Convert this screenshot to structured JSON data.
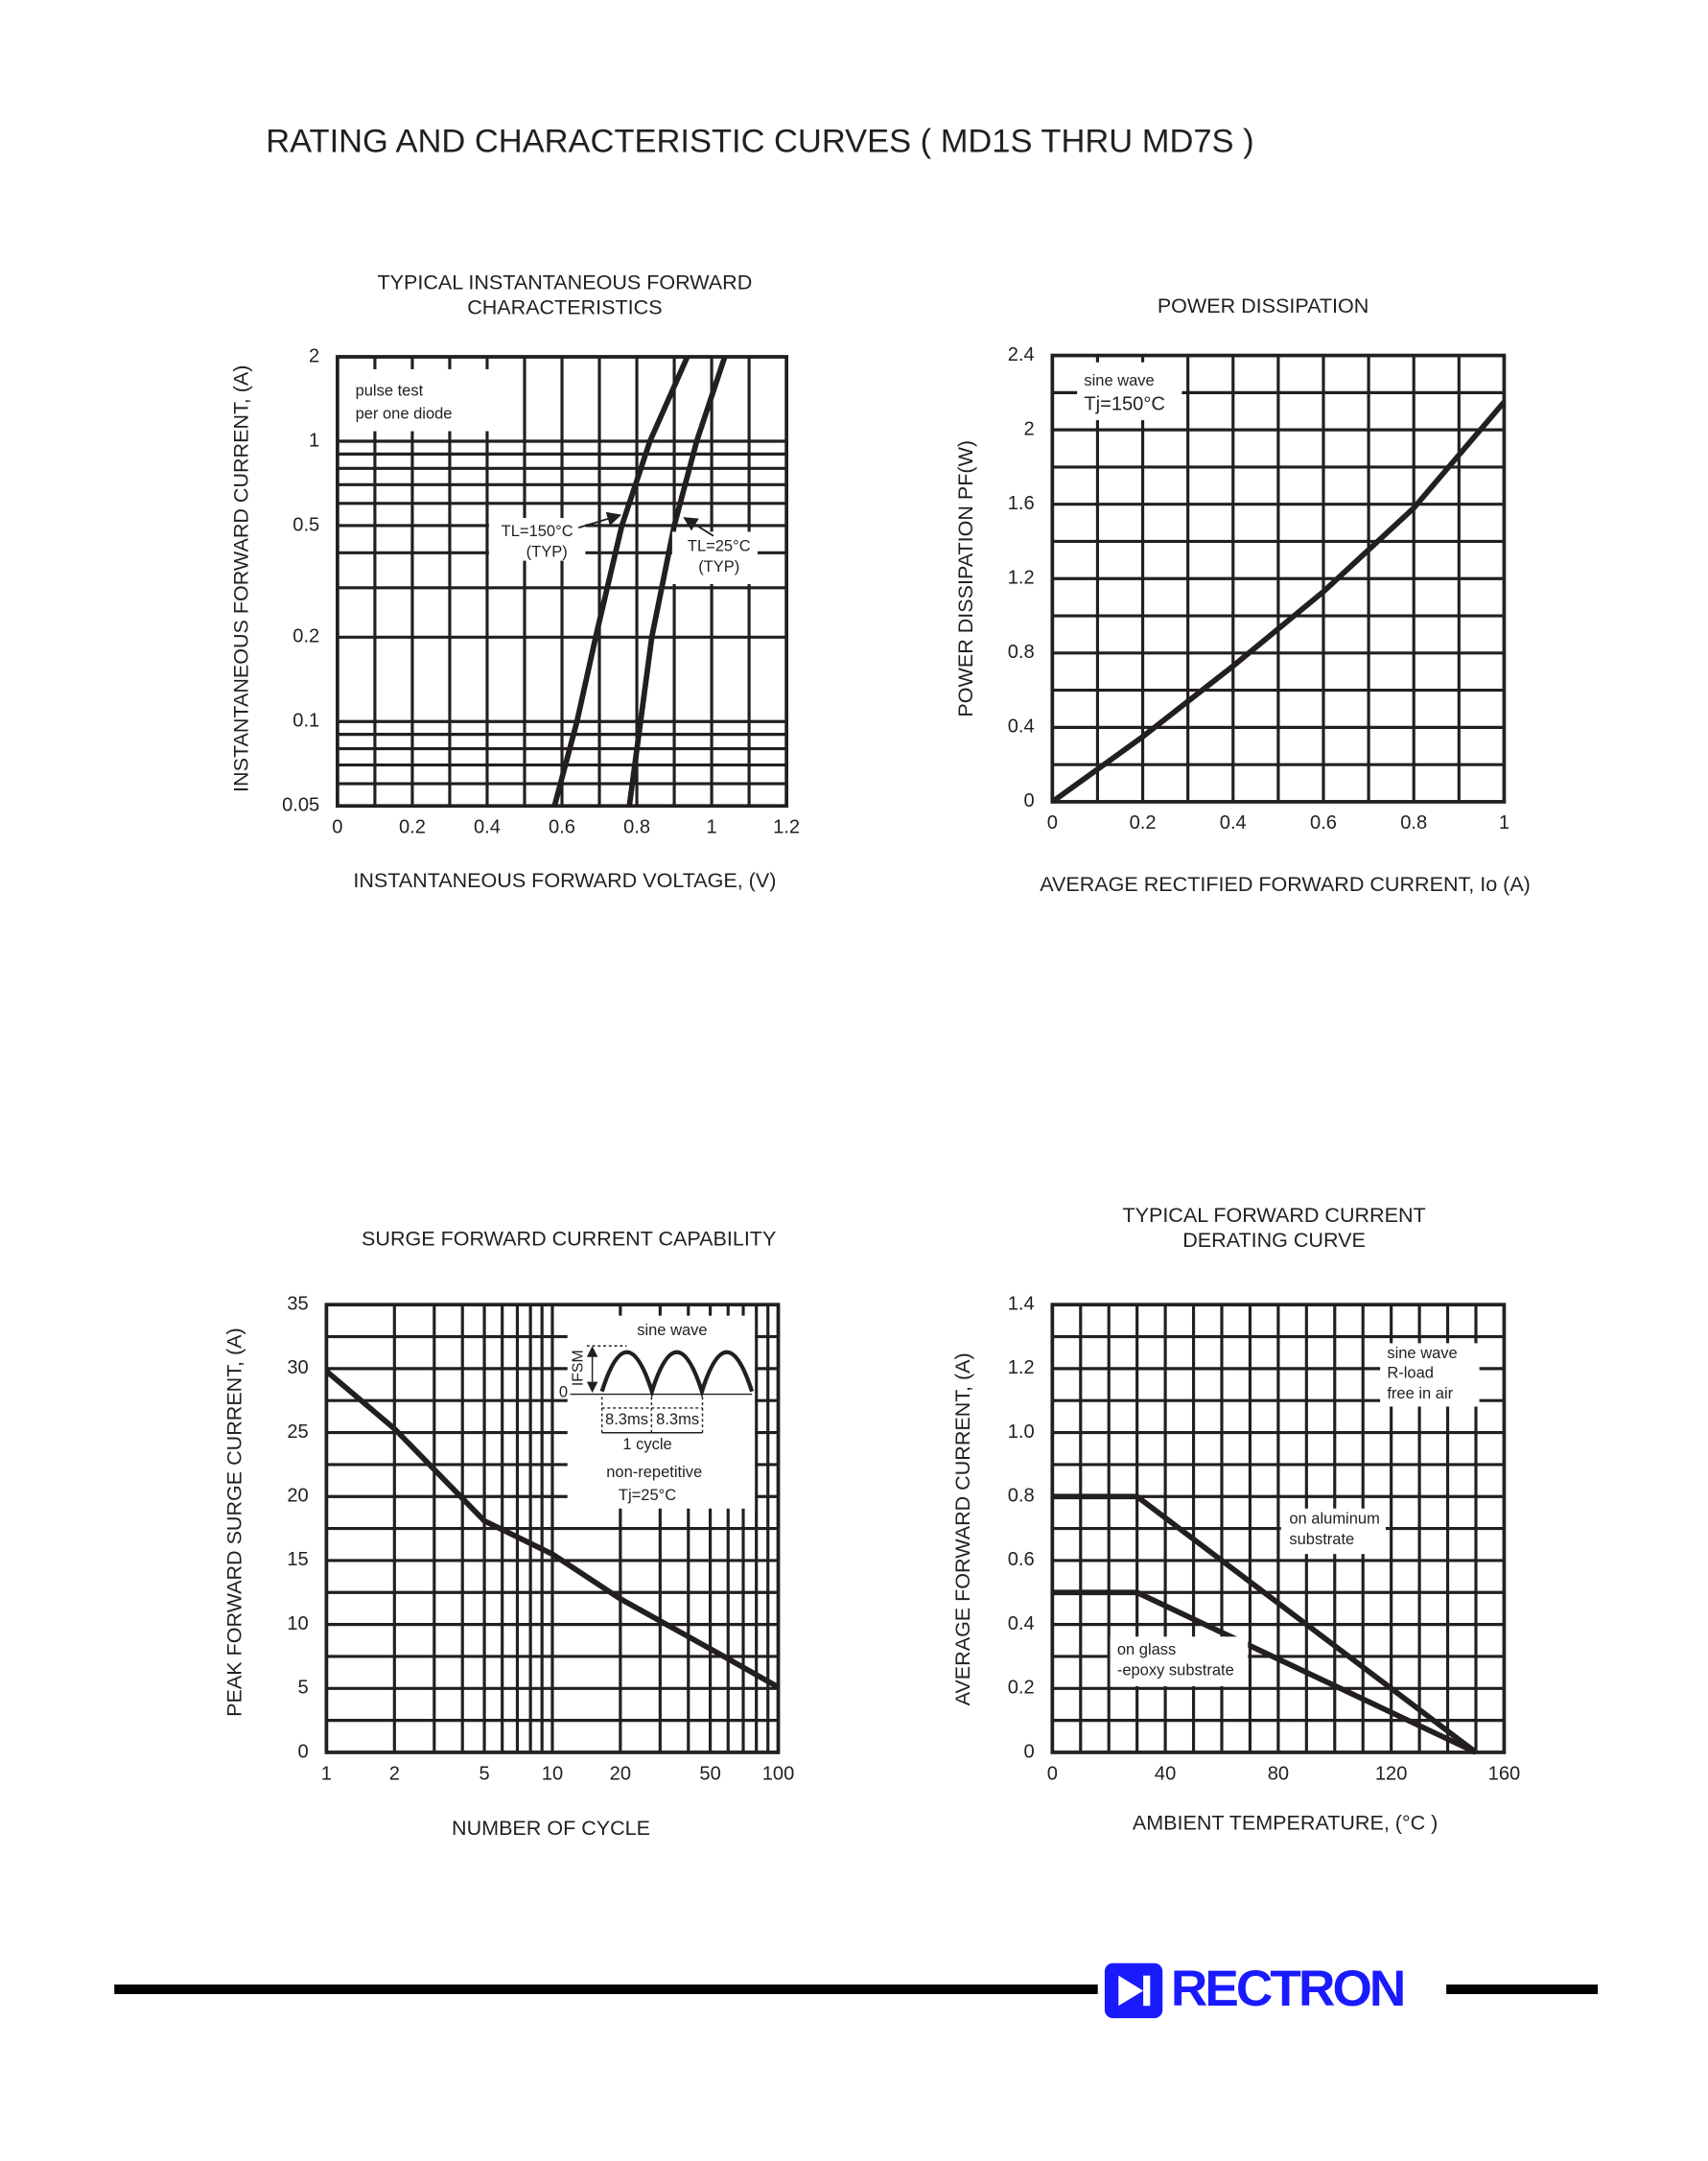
{
  "title": "RATING  AND CHARACTERISTIC CURVES ( MD1S THRU MD7S )",
  "chart_data": [
    {
      "type": "line",
      "title": [
        "TYPICAL INSTANTANEOUS FORWARD",
        "CHARACTERISTICS"
      ],
      "x_label": "INSTANTANEOUS FORWARD VOLTAGE, (V)",
      "y_label": "INSTANTANEOUS FORWARD CURRENT, (A)",
      "xlim": [
        0,
        1.2
      ],
      "ylim": [
        0.05,
        2
      ],
      "yscale": "log",
      "xticks": [
        0,
        0.2,
        0.4,
        0.6,
        0.8,
        1,
        1.2
      ],
      "yticks": [
        0.05,
        0.1,
        0.2,
        0.5,
        1,
        2
      ],
      "minor_xticks": [
        0.1,
        0.3,
        0.5,
        0.7,
        0.9,
        1.1
      ],
      "minor_yticks": [
        0.06,
        0.07,
        0.08,
        0.09,
        0.3,
        0.4,
        0.6,
        0.7,
        0.8,
        0.9
      ],
      "grid": true,
      "series": [
        {
          "name": "TL=150°C",
          "color": "#231f20",
          "x": [
            0.58,
            0.64,
            0.69,
            0.76,
            0.835,
            0.935
          ],
          "y": [
            0.05,
            0.1,
            0.2,
            0.5,
            1,
            2
          ]
        },
        {
          "name": "TL=25°C",
          "color": "#231f20",
          "x": [
            0.78,
            0.81,
            0.84,
            0.9,
            0.96,
            1.035
          ],
          "y": [
            0.05,
            0.1,
            0.2,
            0.5,
            1,
            2
          ]
        }
      ],
      "annotations": [
        "pulse test",
        "per one diode",
        "TL=150°C",
        "(TYP)",
        "TL=25°C",
        "(TYP)"
      ]
    },
    {
      "type": "line",
      "title": [
        "POWER DISSIPATION"
      ],
      "x_label": "AVERAGE RECTIFIED FORWARD CURRENT, Io (A)",
      "y_label": "POWER DISSIPATION PF(W)",
      "xlim": [
        0,
        1
      ],
      "ylim": [
        0,
        2.4
      ],
      "xticks": [
        0,
        0.2,
        0.4,
        0.6,
        0.8,
        1
      ],
      "yticks": [
        0,
        0.4,
        0.8,
        1.2,
        1.6,
        2,
        2.4
      ],
      "minor_xticks": [
        0.1,
        0.3,
        0.5,
        0.7,
        0.9
      ],
      "minor_yticks": [
        0.2,
        0.6,
        1,
        1.4,
        1.8,
        2.2
      ],
      "grid": true,
      "series": [
        {
          "color": "#231f20",
          "x": [
            0,
            0.2,
            0.4,
            0.6,
            0.8,
            1
          ],
          "y": [
            0,
            0.35,
            0.73,
            1.13,
            1.58,
            2.15
          ]
        }
      ],
      "annotations": [
        "sine wave",
        "Tj=150°C"
      ]
    },
    {
      "type": "line",
      "title": [
        "SURGE FORWARD CURRENT CAPABILITY"
      ],
      "x_label": "NUMBER OF CYCLE",
      "y_label": "PEAK FORWARD SURGE CURRENT, (A)",
      "xlim": [
        1,
        100
      ],
      "ylim": [
        0,
        35
      ],
      "xscale": "log",
      "xticks": [
        1,
        2,
        5,
        10,
        20,
        50,
        100
      ],
      "yticks": [
        0,
        5,
        10,
        15,
        20,
        25,
        30,
        35
      ],
      "minor_xticks": [
        3,
        4,
        6,
        7,
        8,
        9,
        30,
        40,
        60,
        70,
        80,
        90
      ],
      "minor_yticks": [
        2.5,
        7.5,
        12.5,
        17.5,
        22.5,
        27.5,
        32.5
      ],
      "grid": true,
      "series": [
        {
          "color": "#231f20",
          "x": [
            1,
            2,
            5,
            10,
            20,
            50,
            100
          ],
          "y": [
            29.8,
            25.3,
            18.1,
            15.5,
            12,
            8.1,
            5.1
          ]
        }
      ],
      "annotations": [
        "sine wave",
        "IFSM",
        "0",
        "8.3ms",
        "8.3ms",
        "1 cycle",
        "non-repetitive",
        "Tj=25°C"
      ]
    },
    {
      "type": "line",
      "title": [
        "TYPICAL FORWARD CURRENT",
        "DERATING CURVE"
      ],
      "x_label": "AMBIENT TEMPERATURE, (°C )",
      "y_label": "AVERAGE FORWARD CURRENT, (A)",
      "xlim": [
        0,
        160
      ],
      "ylim": [
        0,
        1.4
      ],
      "xticks": [
        0,
        40,
        80,
        120,
        160
      ],
      "yticks": [
        0,
        0.2,
        0.4,
        0.6,
        0.8,
        {
          "value": 1,
          "label": "1.0"
        },
        1.2,
        1.4
      ],
      "minor_xticks": [
        10,
        20,
        30,
        50,
        60,
        70,
        90,
        100,
        110,
        130,
        140,
        150
      ],
      "minor_yticks": [
        0.1,
        0.3,
        0.5,
        0.7,
        0.9,
        1.1,
        1.3
      ],
      "grid": true,
      "series": [
        {
          "name": "on aluminum substrate",
          "color": "#231f20",
          "x": [
            0,
            30,
            150
          ],
          "y": [
            0.8,
            0.8,
            0
          ]
        },
        {
          "name": "on glass-epoxy substrate",
          "color": "#231f20",
          "x": [
            0,
            30,
            150
          ],
          "y": [
            0.5,
            0.5,
            0
          ]
        }
      ],
      "annotations": [
        "sine wave",
        "R-load",
        "free in air",
        "on aluminum",
        "substrate",
        "on glass",
        "-epoxy substrate"
      ]
    }
  ],
  "footer": {
    "logo": "RECTRON"
  }
}
